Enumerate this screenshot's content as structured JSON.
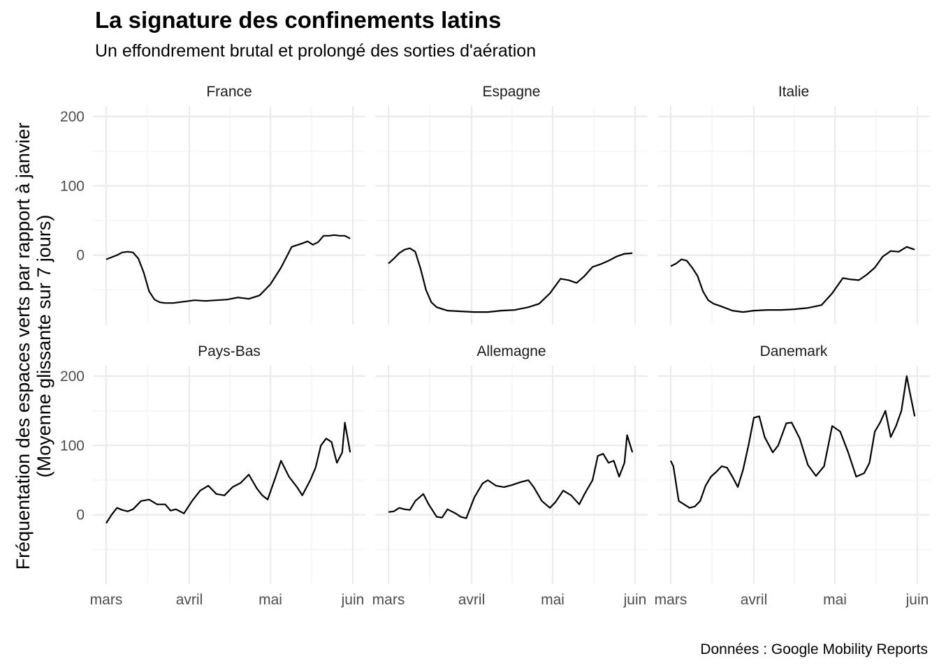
{
  "title": "La signature des confinements latins",
  "subtitle": "Un effondrement brutal et prolongé des sorties d'aération",
  "caption": "Données : Google Mobility Reports",
  "chart_data": {
    "type": "line",
    "ylabel_line1": "Fréquentation des espaces verts par rapport à janvier",
    "ylabel_line2": "(Moyenne glissante sur 7 jours)",
    "x_ticks": [
      "mars",
      "avril",
      "mai",
      "juin"
    ],
    "y_ticks": [
      "0",
      "100",
      "200"
    ],
    "ylim": [
      -100,
      215
    ],
    "xlim": [
      "2020-02-29",
      "2020-06-01"
    ],
    "grid": true,
    "line_color": "#000000",
    "panels": [
      {
        "name": "France",
        "x": [
          "2020-03-01",
          "2020-03-03",
          "2020-03-05",
          "2020-03-07",
          "2020-03-09",
          "2020-03-11",
          "2020-03-13",
          "2020-03-15",
          "2020-03-17",
          "2020-03-19",
          "2020-03-21",
          "2020-03-23",
          "2020-03-26",
          "2020-03-30",
          "2020-04-03",
          "2020-04-07",
          "2020-04-11",
          "2020-04-15",
          "2020-04-19",
          "2020-04-23",
          "2020-04-27",
          "2020-05-01",
          "2020-05-05",
          "2020-05-09",
          "2020-05-13",
          "2020-05-15",
          "2020-05-17",
          "2020-05-19",
          "2020-05-21",
          "2020-05-23",
          "2020-05-25",
          "2020-05-27",
          "2020-05-29",
          "2020-05-31"
        ],
        "values": [
          -6,
          -3,
          0,
          4,
          5,
          4,
          -5,
          -25,
          -52,
          -64,
          -68,
          -69,
          -69,
          -67,
          -65,
          -66,
          -65,
          -64,
          -61,
          -63,
          -58,
          -42,
          -18,
          12,
          17,
          20,
          15,
          19,
          28,
          28,
          29,
          28,
          28,
          24
        ]
      },
      {
        "name": "Espagne",
        "x": [
          "2020-03-01",
          "2020-03-03",
          "2020-03-05",
          "2020-03-07",
          "2020-03-09",
          "2020-03-11",
          "2020-03-13",
          "2020-03-15",
          "2020-03-17",
          "2020-03-19",
          "2020-03-23",
          "2020-03-28",
          "2020-04-02",
          "2020-04-07",
          "2020-04-12",
          "2020-04-17",
          "2020-04-22",
          "2020-04-26",
          "2020-04-30",
          "2020-05-04",
          "2020-05-07",
          "2020-05-10",
          "2020-05-13",
          "2020-05-16",
          "2020-05-19",
          "2020-05-22",
          "2020-05-25",
          "2020-05-28",
          "2020-05-31"
        ],
        "values": [
          -12,
          -5,
          3,
          8,
          10,
          5,
          -20,
          -50,
          -68,
          -75,
          -80,
          -81,
          -82,
          -82,
          -80,
          -79,
          -75,
          -70,
          -55,
          -34,
          -36,
          -40,
          -30,
          -17,
          -13,
          -8,
          -2,
          2,
          3
        ]
      },
      {
        "name": "Italie",
        "x": [
          "2020-03-01",
          "2020-03-03",
          "2020-03-05",
          "2020-03-07",
          "2020-03-09",
          "2020-03-11",
          "2020-03-13",
          "2020-03-15",
          "2020-03-17",
          "2020-03-20",
          "2020-03-24",
          "2020-03-28",
          "2020-04-01",
          "2020-04-06",
          "2020-04-11",
          "2020-04-16",
          "2020-04-21",
          "2020-04-26",
          "2020-04-30",
          "2020-05-04",
          "2020-05-07",
          "2020-05-10",
          "2020-05-13",
          "2020-05-16",
          "2020-05-19",
          "2020-05-22",
          "2020-05-25",
          "2020-05-28",
          "2020-05-31"
        ],
        "values": [
          -16,
          -12,
          -6,
          -8,
          -18,
          -30,
          -52,
          -65,
          -70,
          -74,
          -80,
          -82,
          -80,
          -79,
          -79,
          -78,
          -76,
          -72,
          -55,
          -33,
          -35,
          -36,
          -28,
          -18,
          -2,
          6,
          5,
          12,
          8
        ]
      },
      {
        "name": "Pays-Bas",
        "x": [
          "2020-03-01",
          "2020-03-03",
          "2020-03-05",
          "2020-03-07",
          "2020-03-09",
          "2020-03-11",
          "2020-03-14",
          "2020-03-17",
          "2020-03-20",
          "2020-03-23",
          "2020-03-25",
          "2020-03-27",
          "2020-03-30",
          "2020-04-02",
          "2020-04-05",
          "2020-04-08",
          "2020-04-11",
          "2020-04-14",
          "2020-04-17",
          "2020-04-20",
          "2020-04-23",
          "2020-04-26",
          "2020-04-28",
          "2020-04-30",
          "2020-05-03",
          "2020-05-05",
          "2020-05-08",
          "2020-05-11",
          "2020-05-13",
          "2020-05-16",
          "2020-05-18",
          "2020-05-20",
          "2020-05-22",
          "2020-05-24",
          "2020-05-26",
          "2020-05-28",
          "2020-05-29",
          "2020-05-31"
        ],
        "values": [
          -12,
          0,
          10,
          7,
          5,
          8,
          20,
          22,
          15,
          15,
          6,
          8,
          2,
          20,
          35,
          42,
          30,
          28,
          40,
          46,
          58,
          38,
          28,
          22,
          55,
          78,
          55,
          40,
          28,
          50,
          68,
          100,
          110,
          105,
          75,
          90,
          133,
          90
        ]
      },
      {
        "name": "Allemagne",
        "x": [
          "2020-03-01",
          "2020-03-03",
          "2020-03-05",
          "2020-03-07",
          "2020-03-09",
          "2020-03-11",
          "2020-03-14",
          "2020-03-16",
          "2020-03-19",
          "2020-03-21",
          "2020-03-23",
          "2020-03-26",
          "2020-03-28",
          "2020-03-30",
          "2020-04-02",
          "2020-04-05",
          "2020-04-07",
          "2020-04-10",
          "2020-04-13",
          "2020-04-16",
          "2020-04-19",
          "2020-04-22",
          "2020-04-24",
          "2020-04-27",
          "2020-04-30",
          "2020-05-02",
          "2020-05-05",
          "2020-05-08",
          "2020-05-11",
          "2020-05-13",
          "2020-05-16",
          "2020-05-18",
          "2020-05-20",
          "2020-05-22",
          "2020-05-24",
          "2020-05-26",
          "2020-05-28",
          "2020-05-29",
          "2020-05-31"
        ],
        "values": [
          4,
          5,
          10,
          8,
          7,
          20,
          30,
          15,
          -3,
          -4,
          8,
          2,
          -3,
          -5,
          25,
          45,
          50,
          42,
          40,
          43,
          47,
          50,
          40,
          20,
          10,
          18,
          35,
          28,
          15,
          30,
          50,
          85,
          88,
          75,
          78,
          55,
          75,
          115,
          90
        ]
      },
      {
        "name": "Danemark",
        "x": [
          "2020-03-01",
          "2020-03-02",
          "2020-03-04",
          "2020-03-06",
          "2020-03-08",
          "2020-03-10",
          "2020-03-12",
          "2020-03-14",
          "2020-03-16",
          "2020-03-18",
          "2020-03-20",
          "2020-03-22",
          "2020-03-24",
          "2020-03-26",
          "2020-03-28",
          "2020-03-30",
          "2020-04-01",
          "2020-04-03",
          "2020-04-05",
          "2020-04-08",
          "2020-04-10",
          "2020-04-13",
          "2020-04-15",
          "2020-04-18",
          "2020-04-21",
          "2020-04-24",
          "2020-04-27",
          "2020-04-30",
          "2020-05-03",
          "2020-05-06",
          "2020-05-09",
          "2020-05-12",
          "2020-05-14",
          "2020-05-16",
          "2020-05-18",
          "2020-05-20",
          "2020-05-22",
          "2020-05-24",
          "2020-05-26",
          "2020-05-28",
          "2020-05-29",
          "2020-05-31"
        ],
        "values": [
          78,
          70,
          20,
          15,
          10,
          12,
          20,
          42,
          55,
          62,
          70,
          68,
          55,
          40,
          65,
          100,
          140,
          142,
          112,
          90,
          100,
          132,
          133,
          110,
          72,
          56,
          70,
          128,
          120,
          90,
          55,
          60,
          75,
          120,
          133,
          150,
          112,
          128,
          150,
          200,
          180,
          142
        ]
      }
    ]
  }
}
